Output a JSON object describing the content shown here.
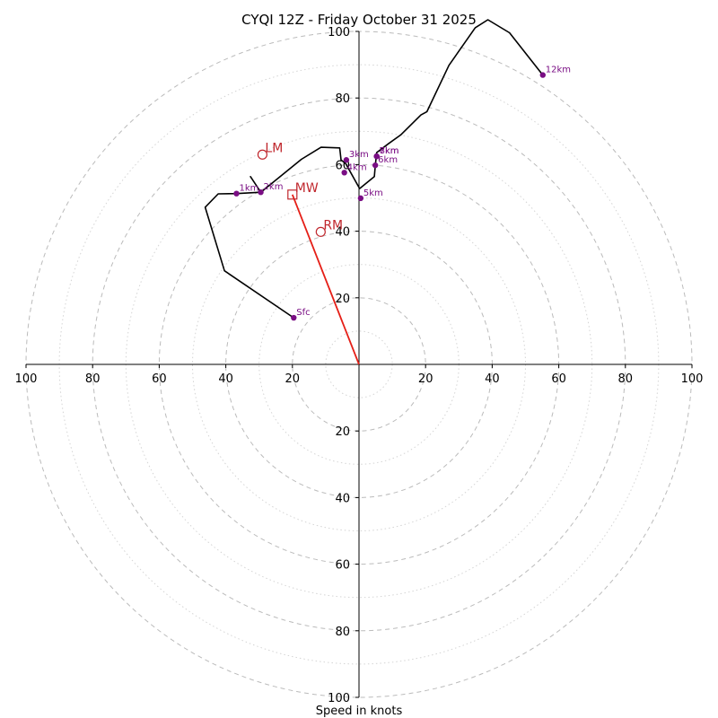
{
  "chart_data": {
    "type": "hodograph",
    "title": "CYQI 12Z - Friday October 31 2025",
    "xlabel": "Speed in knots",
    "units": "knots",
    "xlim": [
      -100,
      100
    ],
    "ylim": [
      -100,
      100
    ],
    "ring_major": [
      20,
      40,
      60,
      80,
      100
    ],
    "ring_minor": [
      10,
      30,
      50,
      70,
      90
    ],
    "x_ticks": [
      {
        "value": -100,
        "label": "100"
      },
      {
        "value": -80,
        "label": "80"
      },
      {
        "value": -60,
        "label": "60"
      },
      {
        "value": -40,
        "label": "40"
      },
      {
        "value": -20,
        "label": "20"
      },
      {
        "value": 20,
        "label": "20"
      },
      {
        "value": 40,
        "label": "40"
      },
      {
        "value": 60,
        "label": "60"
      },
      {
        "value": 80,
        "label": "80"
      },
      {
        "value": 100,
        "label": "100"
      }
    ],
    "y_ticks": [
      {
        "value": 100,
        "label": "100"
      },
      {
        "value": 80,
        "label": "80"
      },
      {
        "value": 60,
        "label": "60"
      },
      {
        "value": 40,
        "label": "40"
      },
      {
        "value": 20,
        "label": "20"
      },
      {
        "value": -20,
        "label": "20"
      },
      {
        "value": -40,
        "label": "40"
      },
      {
        "value": -60,
        "label": "60"
      },
      {
        "value": -80,
        "label": "80"
      },
      {
        "value": -100,
        "label": "100"
      }
    ],
    "hodograph_trace": [
      [
        -19.6,
        14.0
      ],
      [
        -40.4,
        28.1
      ],
      [
        -46.2,
        47.2
      ],
      [
        -42.3,
        51.2
      ],
      [
        -36.8,
        51.3
      ],
      [
        -29.5,
        51.7
      ],
      [
        -32.6,
        56.4
      ],
      [
        -29.5,
        51.7
      ],
      [
        -17.3,
        61.6
      ],
      [
        -11.4,
        65.2
      ],
      [
        -5.8,
        65.0
      ],
      [
        -5.4,
        61.4
      ],
      [
        -4.0,
        60.3
      ],
      [
        0.2,
        52.8
      ],
      [
        4.6,
        56.4
      ],
      [
        4.9,
        59.8
      ],
      [
        5.3,
        63.6
      ],
      [
        9.0,
        66.4
      ],
      [
        12.5,
        68.9
      ],
      [
        18.6,
        74.9
      ],
      [
        20.4,
        75.9
      ],
      [
        27.0,
        89.8
      ],
      [
        34.9,
        101.1
      ],
      [
        38.7,
        103.5
      ],
      [
        45.2,
        99.6
      ],
      [
        55.2,
        86.9
      ]
    ],
    "height_markers": [
      {
        "label": "Sfc",
        "u": -19.6,
        "v": 14.0
      },
      {
        "label": "1km",
        "u": -36.8,
        "v": 51.3
      },
      {
        "label": "2km",
        "u": -29.5,
        "v": 51.7
      },
      {
        "label": "3km",
        "u": -3.8,
        "v": 61.4
      },
      {
        "label": "4km",
        "u": -4.4,
        "v": 57.6
      },
      {
        "label": "5km",
        "u": 0.5,
        "v": 49.9
      },
      {
        "label": "6km",
        "u": 4.9,
        "v": 59.8
      },
      {
        "label": "7km",
        "u": 5.3,
        "v": 62.5
      },
      {
        "label": "8km",
        "u": 5.3,
        "v": 62.5
      },
      {
        "label": "12km",
        "u": 55.2,
        "v": 86.9
      }
    ],
    "storm_motion": [
      {
        "label": "LM",
        "u": -29.0,
        "v": 63.0,
        "marker": "circle"
      },
      {
        "label": "MW",
        "u": -20.0,
        "v": 51.0,
        "marker": "square"
      },
      {
        "label": "RM",
        "u": -11.5,
        "v": 39.8,
        "marker": "circle"
      }
    ],
    "mean_wind_vector": {
      "from": [
        0,
        0
      ],
      "to": [
        -20.0,
        51.0
      ]
    }
  },
  "colors": {
    "trace": "#000000",
    "height_marker": "#7a0e84",
    "motion": "#c0272d",
    "mean_wind_vector": "#e51f17",
    "ring_major": "#bbbbbb",
    "ring_minor": "#d4d4d4",
    "axis": "#000000"
  }
}
